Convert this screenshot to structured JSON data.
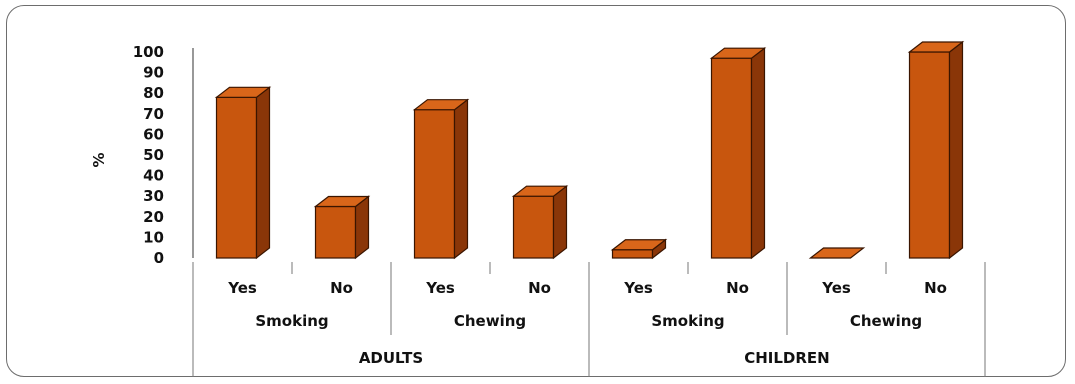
{
  "chart_data": {
    "type": "bar",
    "title": "",
    "xlabel": "",
    "ylabel": "%",
    "ylim": [
      0,
      100
    ],
    "yticks": [
      0,
      10,
      20,
      30,
      40,
      50,
      60,
      70,
      80,
      90,
      100
    ],
    "bar_color": "#c8560e",
    "categories": [
      {
        "group": "ADULTS",
        "subgroup": "Smoking",
        "label": "Yes"
      },
      {
        "group": "ADULTS",
        "subgroup": "Smoking",
        "label": "No"
      },
      {
        "group": "ADULTS",
        "subgroup": "Chewing",
        "label": "Yes"
      },
      {
        "group": "ADULTS",
        "subgroup": "Chewing",
        "label": "No"
      },
      {
        "group": "CHILDREN",
        "subgroup": "Smoking",
        "label": "Yes"
      },
      {
        "group": "CHILDREN",
        "subgroup": "Smoking",
        "label": "No"
      },
      {
        "group": "CHILDREN",
        "subgroup": "Chewing",
        "label": "Yes"
      },
      {
        "group": "CHILDREN",
        "subgroup": "Chewing",
        "label": "No"
      }
    ],
    "values": [
      78,
      25,
      72,
      30,
      4,
      97,
      0,
      100
    ],
    "subgroups": [
      "Smoking",
      "Chewing",
      "Smoking",
      "Chewing"
    ],
    "groups": [
      "ADULTS",
      "CHILDREN"
    ]
  }
}
